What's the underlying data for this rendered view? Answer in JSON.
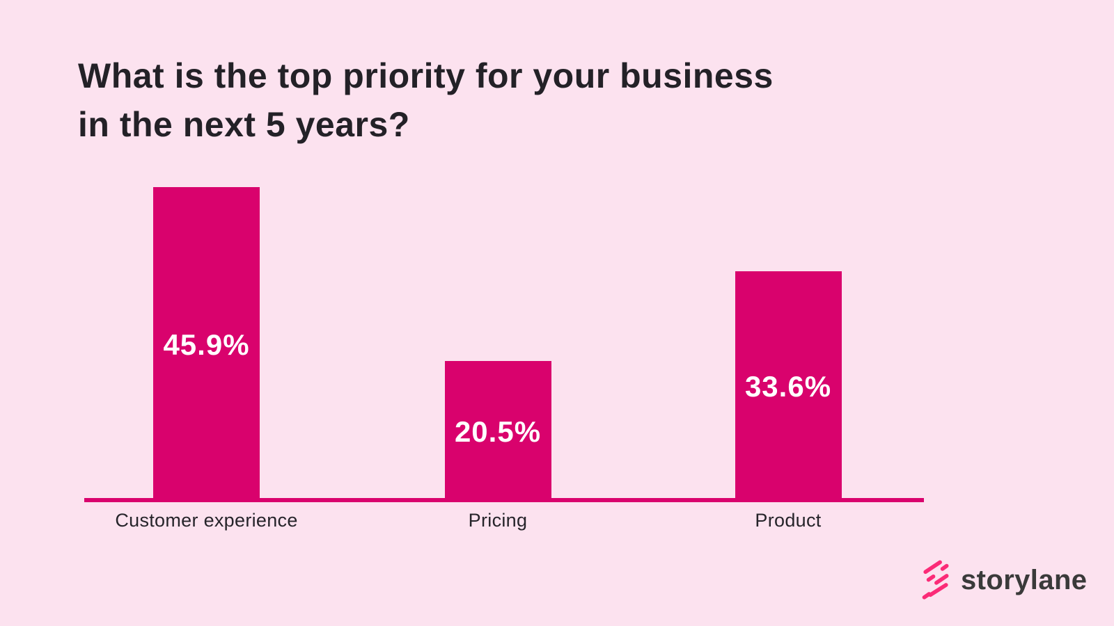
{
  "page": {
    "background_color": "#fce2ef"
  },
  "title": {
    "lines": [
      "What is the top priority for your business",
      "in the next 5 years?"
    ],
    "color": "#232127"
  },
  "chart_data": {
    "type": "bar",
    "title": "What is the top priority for your business in the next 5 years?",
    "categories": [
      "Customer experience",
      "Pricing",
      "Product"
    ],
    "values": [
      45.9,
      20.5,
      33.6
    ],
    "value_labels": [
      "45.9%",
      "20.5%",
      "33.6%"
    ],
    "xlabel": "",
    "ylabel": "",
    "ylim": [
      0,
      50
    ],
    "grid": false,
    "legend": false,
    "bar_color": "#d9026d",
    "axis_line_color": "#d9026d",
    "value_label_color": "#ffffff",
    "category_label_color": "#26242a"
  },
  "branding": {
    "logo_text": "storylane",
    "logo_mark_color": "#fb2b77",
    "logo_text_color": "#3a3a3a"
  }
}
